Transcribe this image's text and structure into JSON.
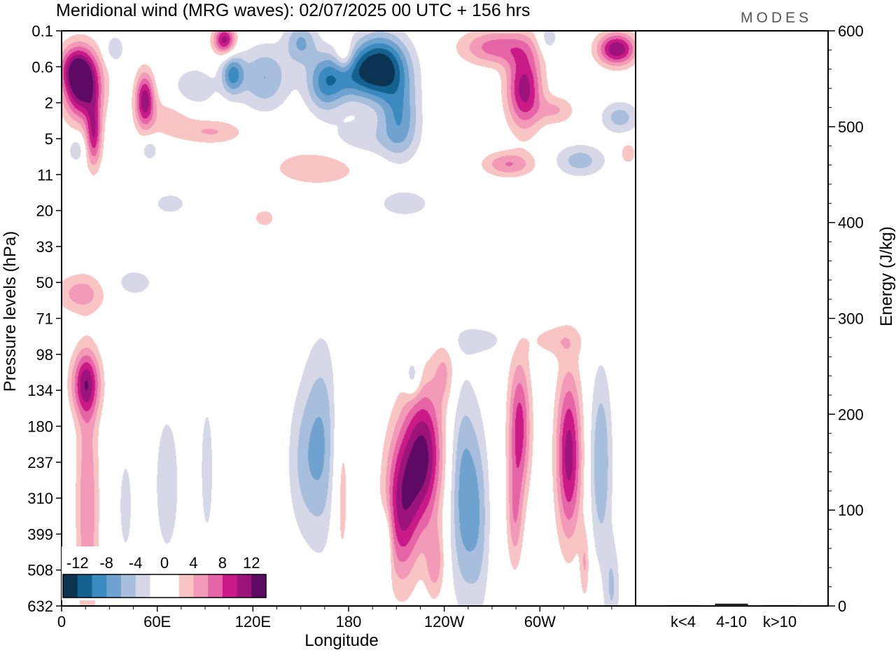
{
  "chart_data": {
    "type": "heatmap",
    "title": "Meridional wind (MRG waves):  02/07/2025  00 UTC  + 156 hrs",
    "logo": "MODES",
    "xlabel": "Longitude",
    "ylabel": "Pressure levels (hPa)",
    "y2label": "Energy (J/kg)",
    "x_ticks": [
      "0",
      "60E",
      "120E",
      "180",
      "120W",
      "60W"
    ],
    "x_tick_degrees": [
      0,
      60,
      120,
      180,
      240,
      300
    ],
    "xlim": [
      0,
      360
    ],
    "y_levels": [
      "0.1",
      "0.6",
      "2",
      "5",
      "11",
      "20",
      "33",
      "50",
      "71",
      "98",
      "134",
      "180",
      "237",
      "310",
      "399",
      "508",
      "632"
    ],
    "energy_axis": {
      "ylim": [
        0,
        600
      ],
      "ticks": [
        "0",
        "100",
        "200",
        "300",
        "400",
        "500",
        "600"
      ]
    },
    "energy_bars": {
      "categories": [
        "k<4",
        "4-10",
        "k>10"
      ],
      "values": [
        0.5,
        2,
        0.5
      ]
    },
    "colorbar": {
      "labels": [
        "-12",
        "-8",
        "-4",
        "0",
        "4",
        "8",
        "12"
      ],
      "colors": [
        "#0b3352",
        "#13628f",
        "#3b8bc0",
        "#6fa2cf",
        "#a7bedc",
        "#d6d8e8",
        "#ffffff",
        "#ffffff",
        "#f8c5c4",
        "#f39ab8",
        "#e665a6",
        "#c91a88",
        "#9c137c",
        "#5c0a63"
      ]
    },
    "blobs": [
      {
        "lon": 13,
        "lev": 1.5,
        "rx": 12,
        "ry": 0.95,
        "v": 14
      },
      {
        "lon": 8,
        "lev": 1.0,
        "rx": 10,
        "ry": 0.6,
        "v": 6
      },
      {
        "lon": 20,
        "lev": 2.9,
        "rx": 5,
        "ry": 0.9,
        "v": 9
      },
      {
        "lon": 33,
        "lev": 0.5,
        "rx": 6,
        "ry": 0.4,
        "v": -4
      },
      {
        "lon": 52,
        "lev": 1.9,
        "rx": 6,
        "ry": 0.75,
        "v": 11
      },
      {
        "lon": 68,
        "lev": 2.4,
        "rx": 18,
        "ry": 0.6,
        "v": 3
      },
      {
        "lon": 55,
        "lev": 3.3,
        "rx": 5,
        "ry": 0.3,
        "v": -4
      },
      {
        "lon": 102,
        "lev": 0.25,
        "rx": 7,
        "ry": 0.4,
        "v": 11
      },
      {
        "lon": 83,
        "lev": 1.6,
        "rx": 14,
        "ry": 0.6,
        "v": -4
      },
      {
        "lon": 95,
        "lev": 2.8,
        "rx": 20,
        "ry": 0.35,
        "v": 4
      },
      {
        "lon": 107,
        "lev": 1.2,
        "rx": 7,
        "ry": 0.55,
        "v": -8
      },
      {
        "lon": 127,
        "lev": 1.3,
        "rx": 16,
        "ry": 0.9,
        "v": -6
      },
      {
        "lon": 150,
        "lev": 0.3,
        "rx": 10,
        "ry": 0.6,
        "v": -6
      },
      {
        "lon": 165,
        "lev": 1.5,
        "rx": 12,
        "ry": 0.8,
        "v": -7
      },
      {
        "lon": 177,
        "lev": 0.7,
        "rx": 6,
        "ry": 0.45,
        "v": 5
      },
      {
        "lon": 180,
        "lev": 1.2,
        "rx": 18,
        "ry": 0.7,
        "v": -6
      },
      {
        "lon": 200,
        "lev": 1.0,
        "rx": 17,
        "ry": 0.9,
        "v": -13
      },
      {
        "lon": 212,
        "lev": 2.4,
        "rx": 12,
        "ry": 1.1,
        "v": -7
      },
      {
        "lon": 190,
        "lev": 3.0,
        "rx": 25,
        "ry": 0.6,
        "v": -3
      },
      {
        "lon": 160,
        "lev": 3.8,
        "rx": 28,
        "ry": 0.5,
        "v": 4
      },
      {
        "lon": 68,
        "lev": 4.8,
        "rx": 12,
        "ry": 0.35,
        "v": -3
      },
      {
        "lon": 215,
        "lev": 4.8,
        "rx": 20,
        "ry": 0.45,
        "v": -3
      },
      {
        "lon": 127,
        "lev": 5.2,
        "rx": 8,
        "ry": 0.3,
        "v": 3
      },
      {
        "lon": 272,
        "lev": 0.45,
        "rx": 22,
        "ry": 0.5,
        "v": 7
      },
      {
        "lon": 290,
        "lev": 1.6,
        "rx": 11,
        "ry": 1.1,
        "v": 11
      },
      {
        "lon": 280,
        "lev": 3.7,
        "rx": 16,
        "ry": 0.35,
        "v": 6
      },
      {
        "lon": 305,
        "lev": 0.2,
        "rx": 6,
        "ry": 0.4,
        "v": -4
      },
      {
        "lon": 310,
        "lev": 2.2,
        "rx": 12,
        "ry": 0.4,
        "v": 4
      },
      {
        "lon": 325,
        "lev": 3.6,
        "rx": 16,
        "ry": 0.45,
        "v": -5
      },
      {
        "lon": 348,
        "lev": 0.5,
        "rx": 12,
        "ry": 0.45,
        "v": 12
      },
      {
        "lon": 350,
        "lev": 2.4,
        "rx": 12,
        "ry": 0.45,
        "v": -5
      },
      {
        "lon": 355,
        "lev": 3.4,
        "rx": 5,
        "ry": 0.3,
        "v": 4
      },
      {
        "lon": 9,
        "lev": 3.3,
        "rx": 5,
        "ry": 0.35,
        "v": -4
      },
      {
        "lon": 12,
        "lev": 7.3,
        "rx": 16,
        "ry": 0.55,
        "v": 5
      },
      {
        "lon": 45,
        "lev": 7.0,
        "rx": 15,
        "ry": 0.45,
        "v": -3
      },
      {
        "lon": 310,
        "lev": 8.6,
        "rx": 18,
        "ry": 0.45,
        "v": 3
      },
      {
        "lon": 262,
        "lev": 8.6,
        "rx": 18,
        "ry": 0.4,
        "v": -3
      },
      {
        "lon": 15,
        "lev": 9.8,
        "rx": 9,
        "ry": 0.9,
        "v": 10
      },
      {
        "lon": 16,
        "lev": 13.2,
        "rx": 7,
        "ry": 3.4,
        "v": 6
      },
      {
        "lon": 163,
        "lev": 11.5,
        "rx": 12,
        "ry": 2.8,
        "v": -6
      },
      {
        "lon": 150,
        "lev": 12.0,
        "rx": 10,
        "ry": 2.0,
        "v": -3
      },
      {
        "lon": 66,
        "lev": 12.6,
        "rx": 10,
        "ry": 2.6,
        "v": -3
      },
      {
        "lon": 40,
        "lev": 13.2,
        "rx": 5,
        "ry": 1.6,
        "v": -3
      },
      {
        "lon": 91,
        "lev": 12.2,
        "rx": 5,
        "ry": 2.3,
        "v": -3
      },
      {
        "lon": 175,
        "lev": 12.5,
        "rx": 6,
        "ry": 2.8,
        "v": 4
      },
      {
        "lon": 213,
        "lev": 13.2,
        "rx": 11,
        "ry": 2.1,
        "v": 10
      },
      {
        "lon": 227,
        "lev": 11.8,
        "rx": 12,
        "ry": 1.9,
        "v": 12
      },
      {
        "lon": 252,
        "lev": 12.9,
        "rx": 9,
        "ry": 2.9,
        "v": -7
      },
      {
        "lon": 262,
        "lev": 13.6,
        "rx": 7,
        "ry": 2.6,
        "v": -4
      },
      {
        "lon": 287,
        "lev": 11.0,
        "rx": 7,
        "ry": 1.9,
        "v": 9
      },
      {
        "lon": 284,
        "lev": 13.5,
        "rx": 5,
        "ry": 1.5,
        "v": 5
      },
      {
        "lon": 318,
        "lev": 11.8,
        "rx": 8,
        "ry": 2.3,
        "v": 11
      },
      {
        "lon": 338,
        "lev": 12.0,
        "rx": 7,
        "ry": 2.6,
        "v": -6
      },
      {
        "lon": 240,
        "lev": 9.5,
        "rx": 7,
        "ry": 0.9,
        "v": 4
      },
      {
        "lon": 220,
        "lev": 9.6,
        "rx": 5,
        "ry": 0.55,
        "v": -5
      },
      {
        "lon": 203,
        "lev": 14.3,
        "rx": 4,
        "ry": 1.0,
        "v": -5
      },
      {
        "lon": 234,
        "lev": 14.8,
        "rx": 6,
        "ry": 1.0,
        "v": 5
      },
      {
        "lon": 345,
        "lev": 15.5,
        "rx": 5,
        "ry": 1.3,
        "v": -4
      },
      {
        "lon": 328,
        "lev": 14.8,
        "rx": 3,
        "ry": 1.0,
        "v": 4
      }
    ]
  }
}
